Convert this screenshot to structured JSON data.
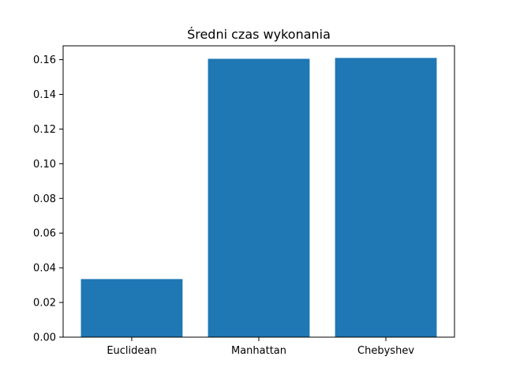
{
  "chart_data": {
    "type": "bar",
    "title": "Średni czas wykonania",
    "xlabel": "",
    "ylabel": "",
    "categories": [
      "Euclidean",
      "Manhattan",
      "Chebyshev"
    ],
    "values": [
      0.0335,
      0.1605,
      0.161
    ],
    "ylim": [
      0,
      0.168
    ],
    "yticks": [
      0.0,
      0.02,
      0.04,
      0.06,
      0.08,
      0.1,
      0.12,
      0.14,
      0.16
    ],
    "ytick_labels": [
      "0.00",
      "0.02",
      "0.04",
      "0.06",
      "0.08",
      "0.10",
      "0.12",
      "0.14",
      "0.16"
    ],
    "grid": false,
    "bar_color": "#1f77b4"
  }
}
